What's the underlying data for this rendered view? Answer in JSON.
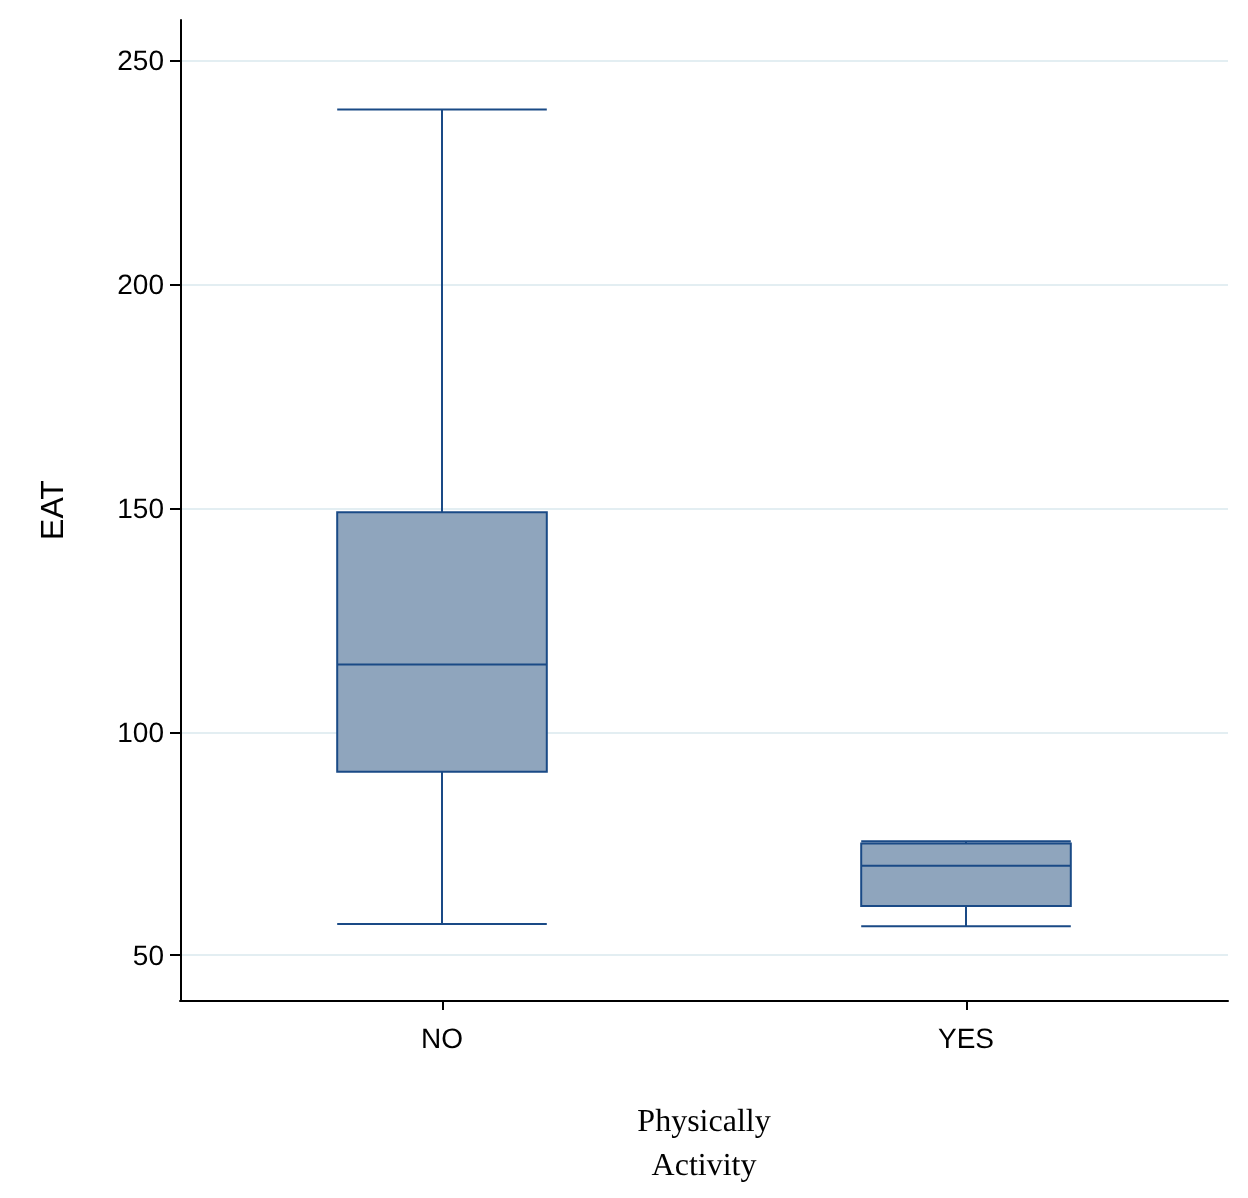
{
  "chart_data": {
    "type": "box",
    "categories": [
      "NO",
      "YES"
    ],
    "xlabel": "Physically\nActivity",
    "ylabel": "EAT",
    "boxes": [
      {
        "low": 57,
        "q1": 91,
        "median": 115,
        "q3": 149,
        "high": 239
      },
      {
        "low": 56.5,
        "q1": 61,
        "median": 70,
        "q3": 75,
        "high": 75.5
      }
    ],
    "color": "#8fa5bd",
    "ylim": [
      40,
      259
    ],
    "yticks": [
      50,
      100,
      150,
      200,
      250
    ],
    "grid": "y"
  }
}
